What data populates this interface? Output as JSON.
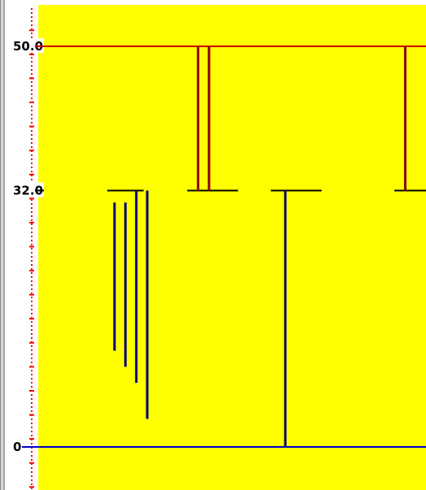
{
  "panel": {
    "plot_bg": "#ffff00",
    "window_bg": "#ffffff"
  },
  "axis": {
    "labels": [
      "50.0",
      "32.0",
      "0"
    ],
    "ymin": -5,
    "ymax": 55,
    "major_ticks": [
      50,
      32,
      0
    ],
    "minor_step": 3
  },
  "colors": {
    "red": "#cc0000",
    "darkred": "#8b0000",
    "navy": "#00007a",
    "blue": "#0000cc",
    "black": "#000000",
    "axis_dots": "#ff0000"
  },
  "chart_data": {
    "type": "other",
    "reference_lines": [
      {
        "name": "",
        "y": 50,
        "color": "red"
      },
      {
        "name": "",
        "y": 0,
        "color": "blue"
      }
    ],
    "shelves": [
      {
        "y": 32,
        "x0": 20,
        "x1": 30
      },
      {
        "y": 32,
        "x0": 42,
        "x1": 56
      },
      {
        "y": 32,
        "x0": 65,
        "x1": 79
      },
      {
        "y": 32,
        "x0": 99,
        "x1": 108
      }
    ],
    "drops_from_50": [
      {
        "x": 45,
        "y_from": 50,
        "y_to": 32
      },
      {
        "x": 48,
        "y_from": 50,
        "y_to": 32
      },
      {
        "x": 102,
        "y_from": 50,
        "y_to": 32
      }
    ],
    "drops_from_32": [
      {
        "x": 22,
        "y_from": 30.5,
        "y_to": 12
      },
      {
        "x": 25,
        "y_from": 30.5,
        "y_to": 10
      },
      {
        "x": 28,
        "y_from": 32,
        "y_to": 8
      },
      {
        "x": 31,
        "y_from": 32,
        "y_to": 3.5
      },
      {
        "x": 69,
        "y_from": 32,
        "y_to": 0
      }
    ]
  }
}
